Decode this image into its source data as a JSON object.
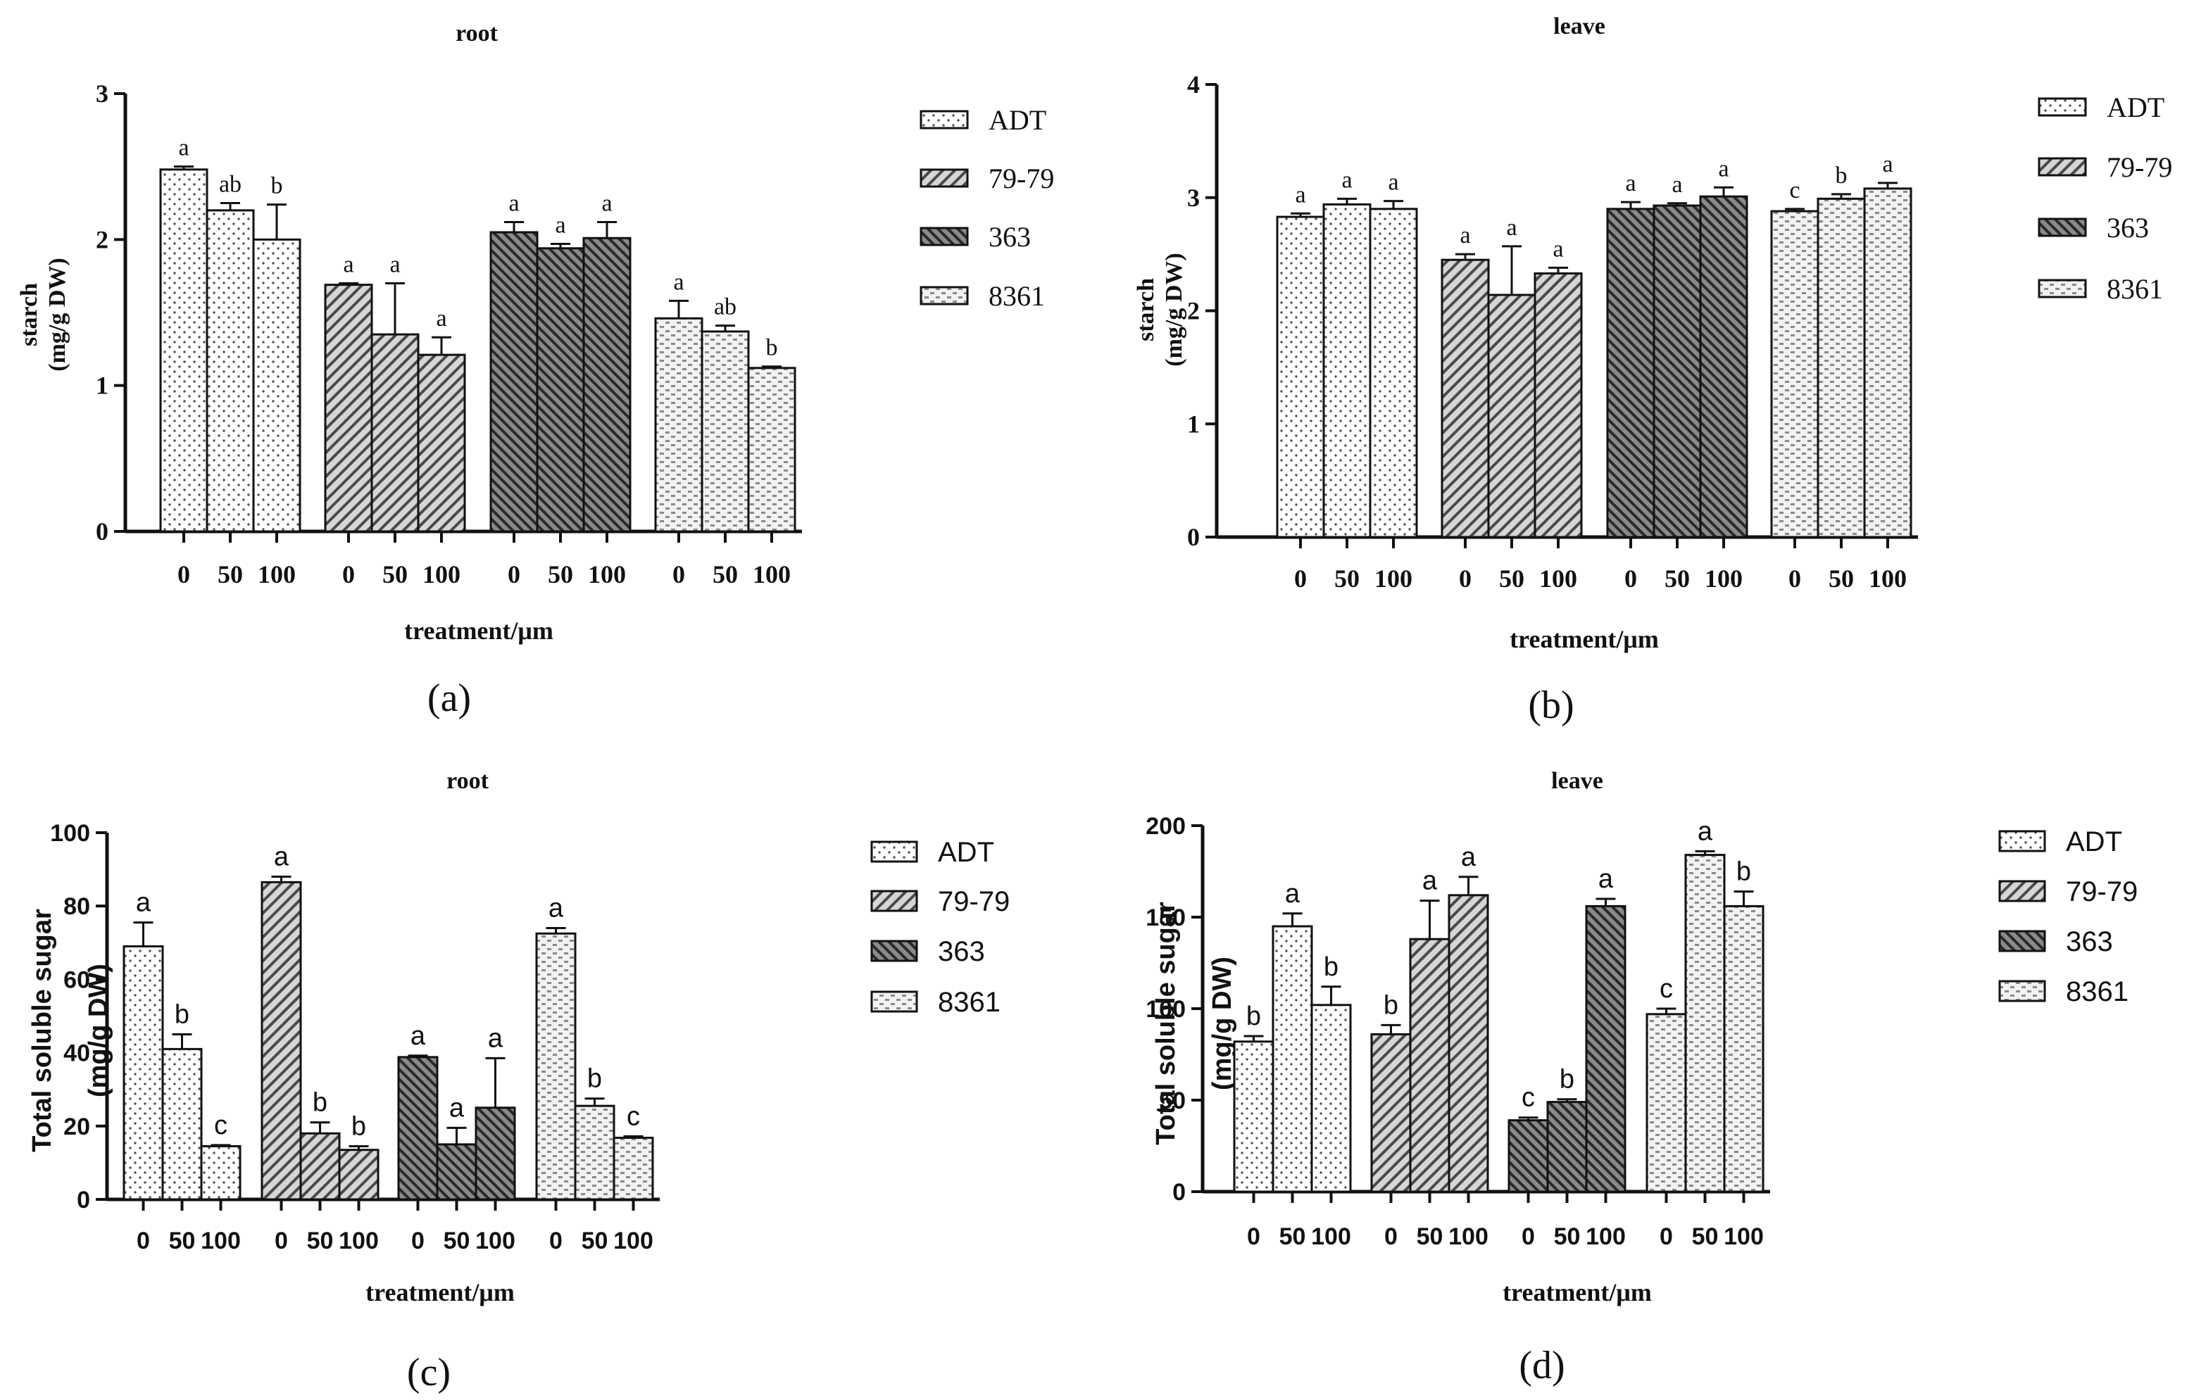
{
  "chart_data": [
    {
      "id": "a",
      "panel_label": "(a)",
      "type": "bar",
      "title": "root",
      "ylabel": [
        "starch",
        "(mg/g DW)"
      ],
      "xlabel": "treatment/μm",
      "ylim": [
        0,
        3
      ],
      "yticks": [
        0,
        1,
        2,
        3
      ],
      "groups": [
        "ADT",
        "79-79",
        "363",
        "8361"
      ],
      "categories": [
        "0",
        "50",
        "100"
      ],
      "series": [
        {
          "name": "ADT",
          "values": [
            2.48,
            2.2,
            2.0
          ],
          "errors": [
            0.02,
            0.05,
            0.24
          ],
          "letters": [
            "a",
            "ab",
            "b"
          ]
        },
        {
          "name": "79-79",
          "values": [
            1.69,
            1.35,
            1.21
          ],
          "errors": [
            0.01,
            0.35,
            0.12
          ],
          "letters": [
            "a",
            "a",
            "a"
          ]
        },
        {
          "name": "363",
          "values": [
            2.05,
            1.94,
            2.01
          ],
          "errors": [
            0.07,
            0.03,
            0.11
          ],
          "letters": [
            "a",
            "a",
            "a"
          ]
        },
        {
          "name": "8361",
          "values": [
            1.46,
            1.37,
            1.12
          ],
          "errors": [
            0.12,
            0.04,
            0.01
          ],
          "letters": [
            "a",
            "ab",
            "b"
          ]
        }
      ],
      "legend": [
        "ADT",
        "79-79",
        "363",
        "8361"
      ]
    },
    {
      "id": "b",
      "panel_label": "(b)",
      "type": "bar",
      "title": "leave",
      "ylabel": [
        "starch",
        "(mg/g DW)"
      ],
      "xlabel": "treatment/μm",
      "ylim": [
        0,
        4
      ],
      "yticks": [
        0,
        1,
        2,
        3,
        4
      ],
      "groups": [
        "ADT",
        "79-79",
        "363",
        "8361"
      ],
      "categories": [
        "0",
        "50",
        "100"
      ],
      "series": [
        {
          "name": "ADT",
          "values": [
            2.83,
            2.94,
            2.9
          ],
          "errors": [
            0.03,
            0.05,
            0.07
          ],
          "letters": [
            "a",
            "a",
            "a"
          ]
        },
        {
          "name": "79-79",
          "values": [
            2.45,
            2.14,
            2.33
          ],
          "errors": [
            0.05,
            0.43,
            0.05
          ],
          "letters": [
            "a",
            "a",
            "a"
          ]
        },
        {
          "name": "363",
          "values": [
            2.9,
            2.93,
            3.01
          ],
          "errors": [
            0.06,
            0.02,
            0.08
          ],
          "letters": [
            "a",
            "a",
            "a"
          ]
        },
        {
          "name": "8361",
          "values": [
            2.88,
            2.99,
            3.08
          ],
          "errors": [
            0.02,
            0.04,
            0.05
          ],
          "letters": [
            "c",
            "b",
            "a"
          ]
        }
      ],
      "legend": [
        "ADT",
        "79-79",
        "363",
        "8361"
      ]
    },
    {
      "id": "c",
      "panel_label": "(c)",
      "type": "bar",
      "title": "root",
      "ylabel": [
        "Total soluble sugar",
        "(mg/g DW)"
      ],
      "xlabel": "treatment/μm",
      "ylim": [
        0,
        100
      ],
      "yticks": [
        0,
        20,
        40,
        60,
        80,
        100
      ],
      "groups": [
        "ADT",
        "79-79",
        "363",
        "8361"
      ],
      "categories": [
        "0",
        "50",
        "100"
      ],
      "series": [
        {
          "name": "ADT",
          "values": [
            69,
            41,
            14.5
          ],
          "errors": [
            6.5,
            4.0,
            0.3
          ],
          "letters": [
            "a",
            "b",
            "c"
          ]
        },
        {
          "name": "79-79",
          "values": [
            86.5,
            18,
            13.5
          ],
          "errors": [
            1.5,
            3.0,
            1.0
          ],
          "letters": [
            "a",
            "b",
            "b"
          ]
        },
        {
          "name": "363",
          "values": [
            38.8,
            15,
            25
          ],
          "errors": [
            0.4,
            4.5,
            13.5
          ],
          "letters": [
            "a",
            "a",
            "a"
          ]
        },
        {
          "name": "8361",
          "values": [
            72.5,
            25.5,
            16.8
          ],
          "errors": [
            1.5,
            2.0,
            0.4
          ],
          "letters": [
            "a",
            "b",
            "c"
          ]
        }
      ],
      "legend": [
        "ADT",
        "79-79",
        "363",
        "8361"
      ]
    },
    {
      "id": "d",
      "panel_label": "(d)",
      "type": "bar",
      "title": "leave",
      "ylabel": [
        "Total soluble sugar",
        "(mg/g DW)"
      ],
      "xlabel": "treatment/μm",
      "ylim": [
        0,
        200
      ],
      "yticks": [
        0,
        50,
        100,
        150,
        200
      ],
      "groups": [
        "ADT",
        "79-79",
        "363",
        "8361"
      ],
      "categories": [
        "0",
        "50",
        "100"
      ],
      "series": [
        {
          "name": "ADT",
          "values": [
            82,
            145,
            102
          ],
          "errors": [
            3,
            7,
            10
          ],
          "letters": [
            "b",
            "a",
            "b"
          ]
        },
        {
          "name": "79-79",
          "values": [
            86,
            138,
            162
          ],
          "errors": [
            5,
            21,
            10
          ],
          "letters": [
            "b",
            "a",
            "a"
          ]
        },
        {
          "name": "363",
          "values": [
            39,
            49,
            156
          ],
          "errors": [
            1.5,
            1.5,
            4
          ],
          "letters": [
            "c",
            "b",
            "a"
          ]
        },
        {
          "name": "8361",
          "values": [
            97,
            184,
            156
          ],
          "errors": [
            3,
            2,
            8
          ],
          "letters": [
            "c",
            "a",
            "b"
          ]
        }
      ],
      "legend": [
        "ADT",
        "79-79",
        "363",
        "8361"
      ]
    }
  ]
}
